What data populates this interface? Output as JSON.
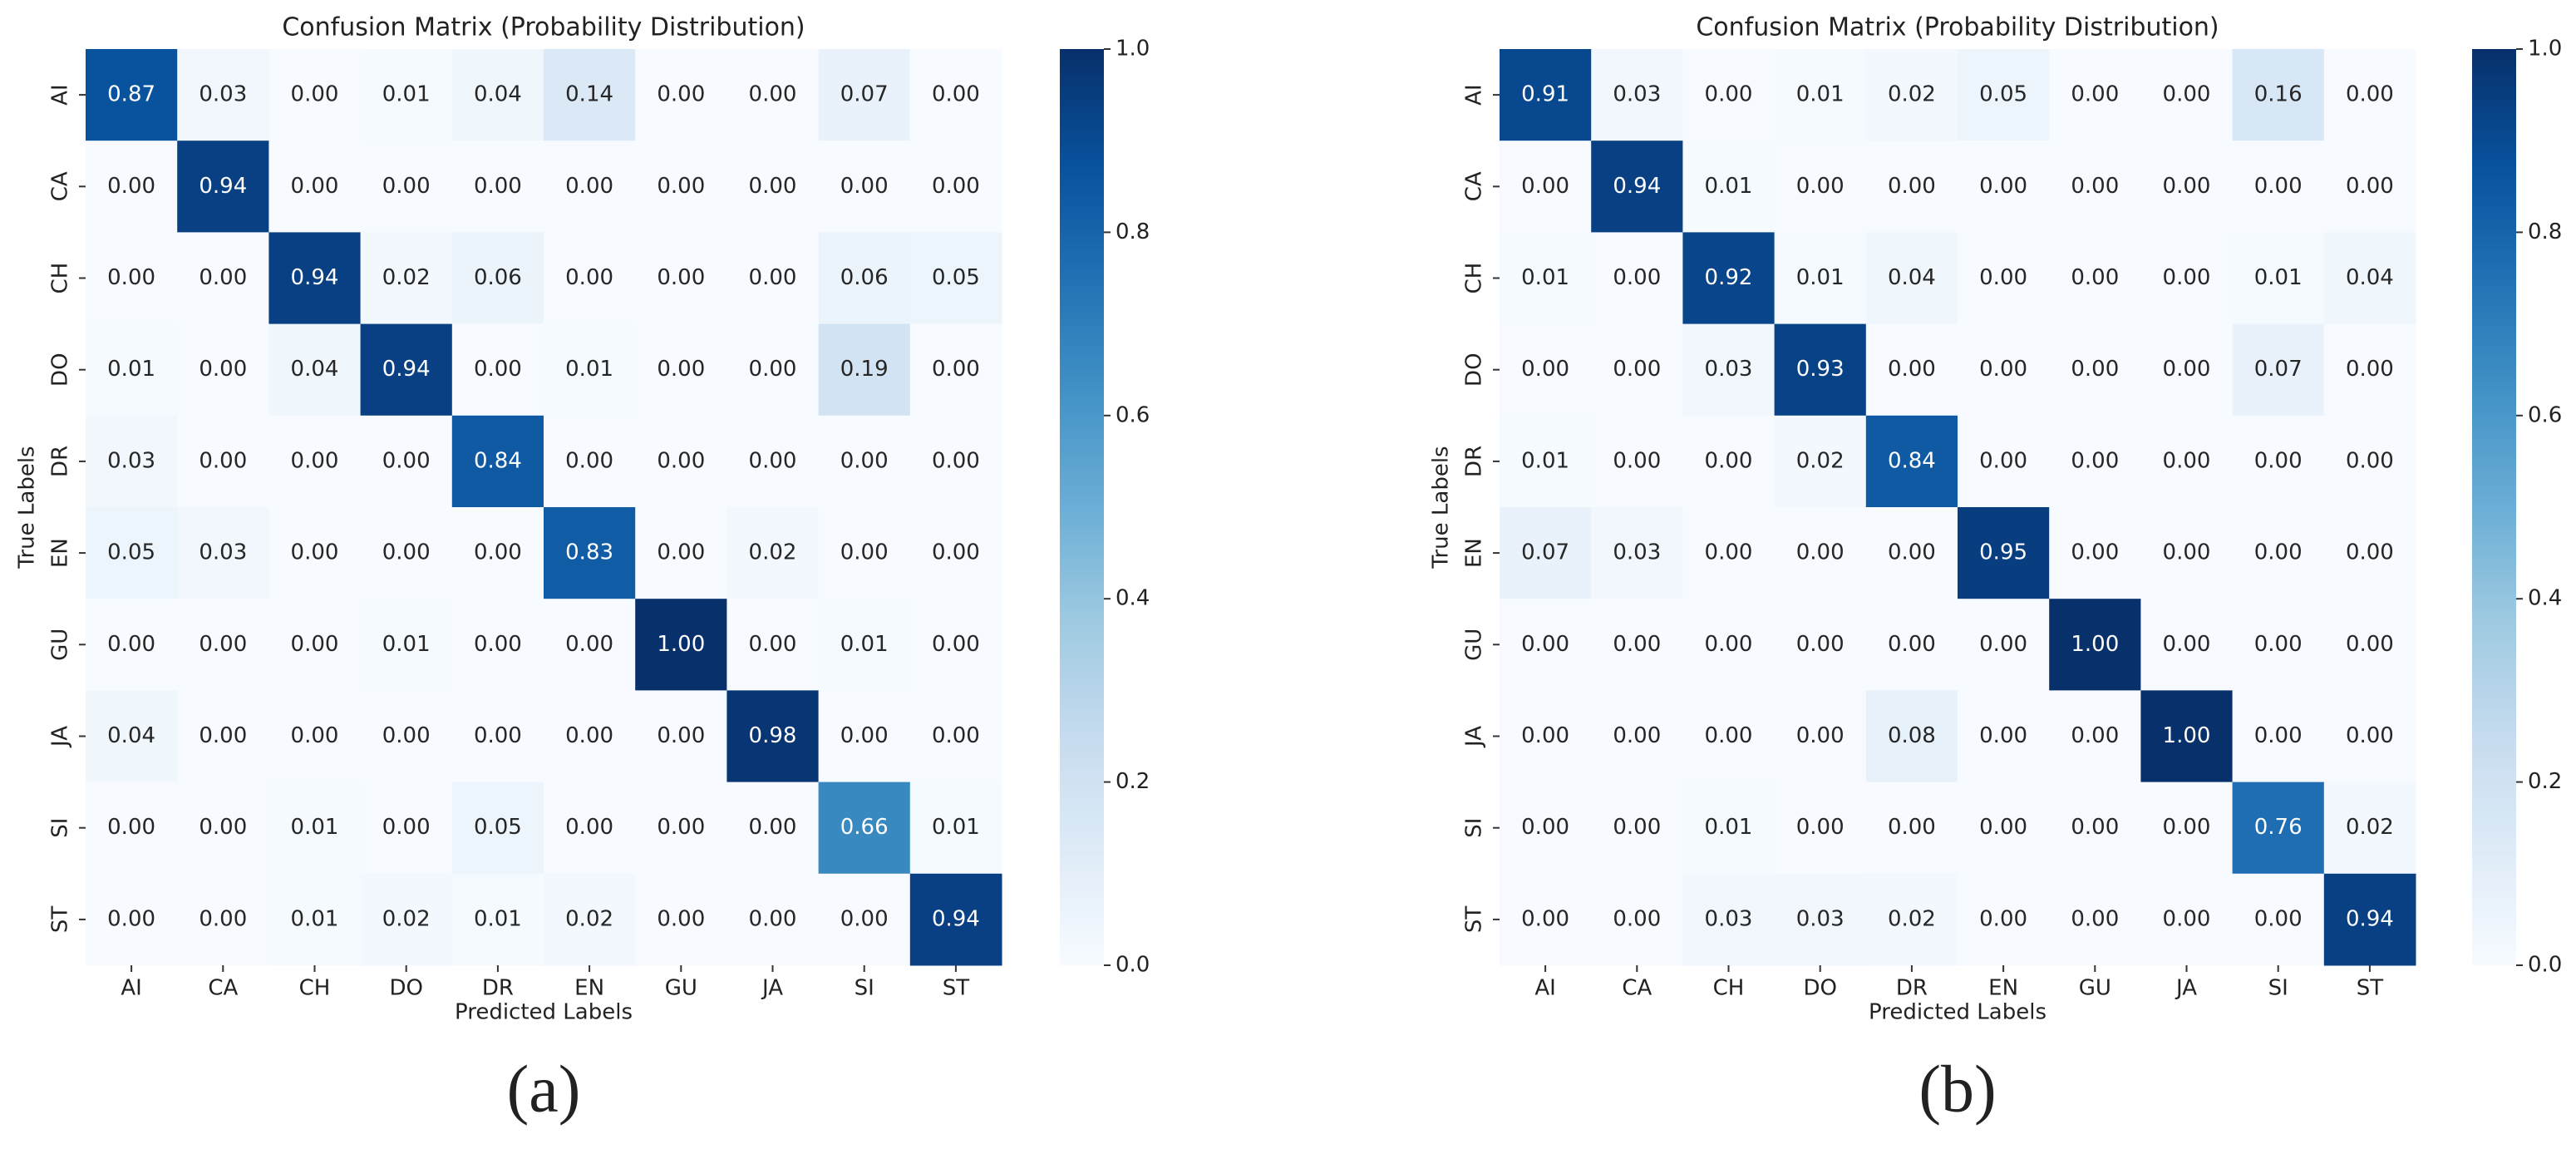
{
  "chart_data": [
    {
      "type": "heatmap",
      "title": "Confusion Matrix (Probability Distribution)",
      "xlabel": "Predicted Labels",
      "ylabel": "True Labels",
      "caption": "(a)",
      "colormap": "Blues",
      "x_categories": [
        "AI",
        "CA",
        "CH",
        "DO",
        "DR",
        "EN",
        "GU",
        "JA",
        "SI",
        "ST"
      ],
      "y_categories": [
        "AI",
        "CA",
        "CH",
        "DO",
        "DR",
        "EN",
        "GU",
        "JA",
        "SI",
        "ST"
      ],
      "values": [
        [
          0.87,
          0.03,
          0,
          0.01,
          0.04,
          0.14,
          0,
          0,
          0.07,
          0
        ],
        [
          0,
          0.94,
          0,
          0,
          0,
          0,
          0,
          0,
          0,
          0
        ],
        [
          0,
          0,
          0.94,
          0.02,
          0.06,
          0,
          0,
          0,
          0.06,
          0.05
        ],
        [
          0.01,
          0,
          0.04,
          0.94,
          0,
          0.01,
          0,
          0,
          0.19,
          0
        ],
        [
          0.03,
          0,
          0,
          0,
          0.84,
          0,
          0,
          0,
          0,
          0
        ],
        [
          0.05,
          0.03,
          0,
          0,
          0,
          0.83,
          0,
          0.02,
          0,
          0
        ],
        [
          0,
          0,
          0,
          0.01,
          0,
          0,
          1,
          0,
          0.01,
          0
        ],
        [
          0.04,
          0,
          0,
          0,
          0,
          0,
          0,
          0.98,
          0,
          0
        ],
        [
          0,
          0,
          0.01,
          0,
          0.05,
          0,
          0,
          0,
          0.66,
          0.01
        ],
        [
          0,
          0,
          0.01,
          0.02,
          0.01,
          0.02,
          0,
          0,
          0,
          0.94
        ]
      ],
      "value_labels": [
        [
          "0.87",
          "0.03",
          "0.00",
          "0.01",
          "0.04",
          "0.14",
          "0.00",
          "0.00",
          "0.07",
          "0.00"
        ],
        [
          "0.00",
          "0.94",
          "0.00",
          "0.00",
          "0.00",
          "0.00",
          "0.00",
          "0.00",
          "0.00",
          "0.00"
        ],
        [
          "0.00",
          "0.00",
          "0.94",
          "0.02",
          "0.06",
          "0.00",
          "0.00",
          "0.00",
          "0.06",
          "0.05"
        ],
        [
          "0.01",
          "0.00",
          "0.04",
          "0.94",
          "0.00",
          "0.01",
          "0.00",
          "0.00",
          "0.19",
          "0.00"
        ],
        [
          "0.03",
          "0.00",
          "0.00",
          "0.00",
          "0.84",
          "0.00",
          "0.00",
          "0.00",
          "0.00",
          "0.00"
        ],
        [
          "0.05",
          "0.03",
          "0.00",
          "0.00",
          "0.00",
          "0.83",
          "0.00",
          "0.02",
          "0.00",
          "0.00"
        ],
        [
          "0.00",
          "0.00",
          "0.00",
          "0.01",
          "0.00",
          "0.00",
          "1.00",
          "0.00",
          "0.01",
          "0.00"
        ],
        [
          "0.04",
          "0.00",
          "0.00",
          "0.00",
          "0.00",
          "0.00",
          "0.00",
          "0.98",
          "0.00",
          "0.00"
        ],
        [
          "0.00",
          "0.00",
          "0.01",
          "0.00",
          "0.05",
          "0.00",
          "0.00",
          "0.00",
          "0.66",
          "0.01"
        ],
        [
          "0.00",
          "0.00",
          "0.01",
          "0.02",
          "0.01",
          "0.02",
          "0.00",
          "0.00",
          "0.00",
          "0.94"
        ]
      ],
      "clim": [
        0,
        1
      ],
      "cticks": [
        {
          "value": 0,
          "label": "0.0"
        },
        0.2,
        0.4,
        0.6,
        0.8,
        {
          "value": 1,
          "label": "1.0"
        }
      ]
    },
    {
      "type": "heatmap",
      "title": "Confusion Matrix (Probability Distribution)",
      "xlabel": "Predicted Labels",
      "ylabel": "True Labels",
      "caption": "(b)",
      "colormap": "Blues",
      "x_categories": [
        "AI",
        "CA",
        "CH",
        "DO",
        "DR",
        "EN",
        "GU",
        "JA",
        "SI",
        "ST"
      ],
      "y_categories": [
        "AI",
        "CA",
        "CH",
        "DO",
        "DR",
        "EN",
        "GU",
        "JA",
        "SI",
        "ST"
      ],
      "values": [
        [
          0.91,
          0.03,
          0,
          0.01,
          0.02,
          0.05,
          0,
          0,
          0.16,
          0
        ],
        [
          0,
          0.94,
          0.01,
          0,
          0,
          0,
          0,
          0,
          0,
          0
        ],
        [
          0.01,
          0,
          0.92,
          0.01,
          0.04,
          0,
          0,
          0,
          0.01,
          0.04
        ],
        [
          0,
          0,
          0.03,
          0.93,
          0,
          0,
          0,
          0,
          0.07,
          0
        ],
        [
          0.01,
          0,
          0,
          0.02,
          0.84,
          0,
          0,
          0,
          0,
          0
        ],
        [
          0.07,
          0.03,
          0,
          0,
          0,
          0.95,
          0,
          0,
          0,
          0
        ],
        [
          0,
          0,
          0,
          0,
          0,
          0,
          1,
          0,
          0,
          0
        ],
        [
          0,
          0,
          0,
          0,
          0.08,
          0,
          0,
          1,
          0,
          0
        ],
        [
          0,
          0,
          0.01,
          0,
          0,
          0,
          0,
          0,
          0.76,
          0.02
        ],
        [
          0,
          0,
          0.03,
          0.03,
          0.02,
          0,
          0,
          0,
          0,
          0.94
        ]
      ],
      "value_labels": [
        [
          "0.91",
          "0.03",
          "0.00",
          "0.01",
          "0.02",
          "0.05",
          "0.00",
          "0.00",
          "0.16",
          "0.00"
        ],
        [
          "0.00",
          "0.94",
          "0.01",
          "0.00",
          "0.00",
          "0.00",
          "0.00",
          "0.00",
          "0.00",
          "0.00"
        ],
        [
          "0.01",
          "0.00",
          "0.92",
          "0.01",
          "0.04",
          "0.00",
          "0.00",
          "0.00",
          "0.01",
          "0.04"
        ],
        [
          "0.00",
          "0.00",
          "0.03",
          "0.93",
          "0.00",
          "0.00",
          "0.00",
          "0.00",
          "0.07",
          "0.00"
        ],
        [
          "0.01",
          "0.00",
          "0.00",
          "0.02",
          "0.84",
          "0.00",
          "0.00",
          "0.00",
          "0.00",
          "0.00"
        ],
        [
          "0.07",
          "0.03",
          "0.00",
          "0.00",
          "0.00",
          "0.95",
          "0.00",
          "0.00",
          "0.00",
          "0.00"
        ],
        [
          "0.00",
          "0.00",
          "0.00",
          "0.00",
          "0.00",
          "0.00",
          "1.00",
          "0.00",
          "0.00",
          "0.00"
        ],
        [
          "0.00",
          "0.00",
          "0.00",
          "0.00",
          "0.08",
          "0.00",
          "0.00",
          "1.00",
          "0.00",
          "0.00"
        ],
        [
          "0.00",
          "0.00",
          "0.01",
          "0.00",
          "0.00",
          "0.00",
          "0.00",
          "0.00",
          "0.76",
          "0.02"
        ],
        [
          "0.00",
          "0.00",
          "0.03",
          "0.03",
          "0.02",
          "0.00",
          "0.00",
          "0.00",
          "0.00",
          "0.94"
        ]
      ],
      "clim": [
        0,
        1
      ],
      "cticks": [
        {
          "value": 0,
          "label": "0.0"
        },
        0.2,
        0.4,
        0.6,
        0.8,
        {
          "value": 1,
          "label": "1.0"
        }
      ]
    }
  ]
}
